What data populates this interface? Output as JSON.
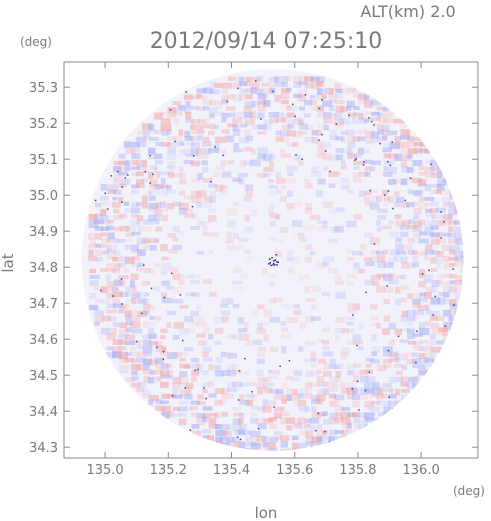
{
  "chart_data": {
    "type": "heatmap",
    "title": "2012/09/14 07:25:10",
    "altitude_label": "ALT(km)  2.0",
    "xlabel": "lon",
    "ylabel": "lat",
    "x_unit": "(deg)",
    "y_unit": "(deg)",
    "xlim": [
      134.87,
      136.18
    ],
    "ylim": [
      34.27,
      35.37
    ],
    "x_ticks": [
      135.0,
      135.2,
      135.4,
      135.6,
      135.8,
      136.0
    ],
    "x_tick_labels": [
      "135.0",
      "135.2",
      "135.4",
      "135.6",
      "135.8",
      "136.0"
    ],
    "y_ticks": [
      34.3,
      34.4,
      34.5,
      34.6,
      34.7,
      34.8,
      34.9,
      35.0,
      35.1,
      35.2,
      35.3
    ],
    "y_tick_labels": [
      "34.3",
      "34.4",
      "34.5",
      "34.6",
      "34.7",
      "34.8",
      "34.9",
      "35.0",
      "35.1",
      "35.2",
      "35.3"
    ],
    "radar_center": [
      135.53,
      34.82
    ],
    "radar_radius_lat": 0.53,
    "colors": {
      "positive": "#f2a0a0",
      "negative": "#a0a8f2",
      "background": "#f2f2fb",
      "frame": "#8a8a8a"
    }
  }
}
